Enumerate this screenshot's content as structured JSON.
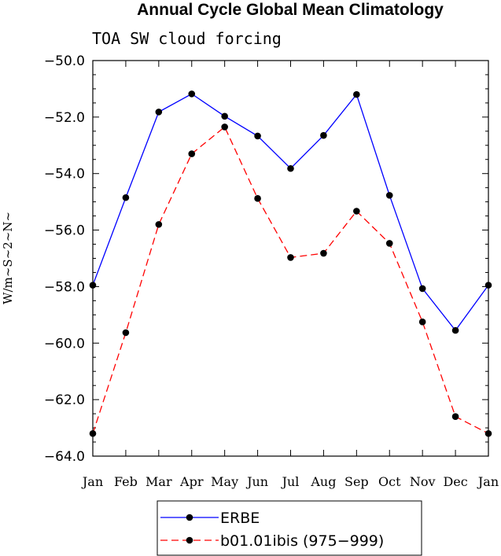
{
  "chart_data": {
    "type": "line",
    "title": "Annual Cycle Global Mean Climatology",
    "subtitle": "TOA SW cloud forcing",
    "ylabel": "W/m~S~2~N~",
    "xlabel": "",
    "categories": [
      "Jan",
      "Feb",
      "Mar",
      "Apr",
      "May",
      "Jun",
      "Jul",
      "Aug",
      "Sep",
      "Oct",
      "Nov",
      "Dec",
      "Jan"
    ],
    "ylim": [
      -64.0,
      -50.0
    ],
    "yticks": [
      -50.0,
      -52.0,
      -54.0,
      -56.0,
      -58.0,
      -60.0,
      -62.0,
      -64.0
    ],
    "ytick_labels": [
      "−50.0",
      "−52.0",
      "−54.0",
      "−56.0",
      "−58.0",
      "−60.0",
      "−62.0",
      "−64.0"
    ],
    "grid": false,
    "legend_position": "bottom-center",
    "series": [
      {
        "name": "ERBE",
        "color": "#0000ff",
        "dash": "solid",
        "marker": "filled-circle",
        "values": [
          -57.95,
          -54.85,
          -51.82,
          -51.18,
          -51.97,
          -52.67,
          -53.82,
          -52.65,
          -51.2,
          -54.77,
          -58.07,
          -59.55,
          -57.95
        ]
      },
      {
        "name": "b01.01ibis (975−999)",
        "color": "#ff0000",
        "dash": "dashed",
        "marker": "filled-circle",
        "values": [
          -63.2,
          -59.63,
          -55.8,
          -53.3,
          -52.35,
          -54.88,
          -56.97,
          -56.82,
          -55.33,
          -56.47,
          -59.25,
          -62.6,
          -63.2
        ]
      }
    ]
  }
}
